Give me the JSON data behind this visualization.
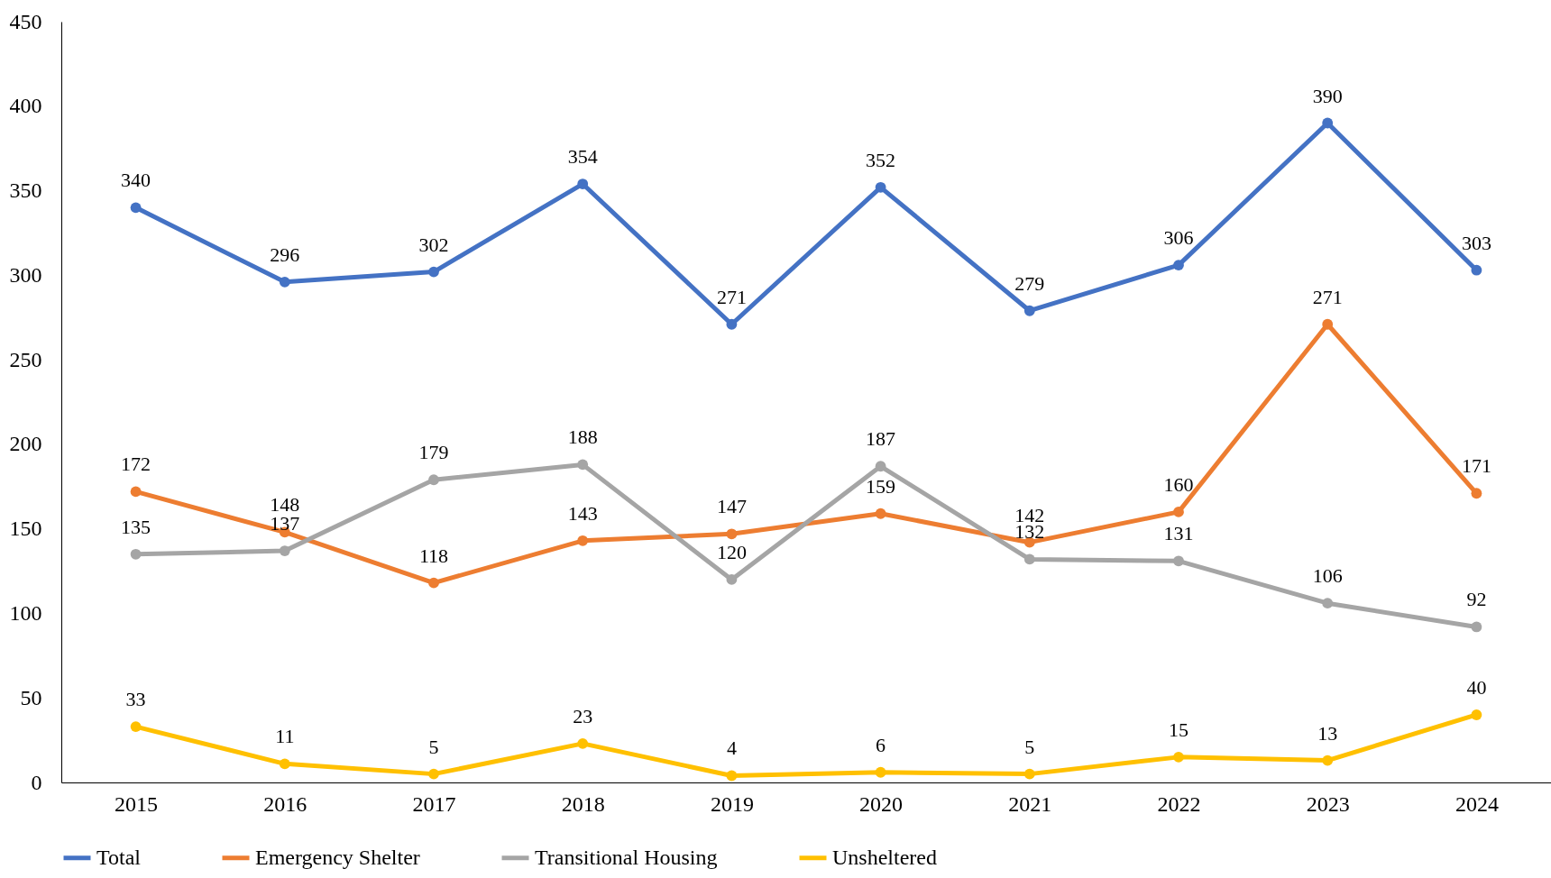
{
  "chart_data": {
    "type": "line",
    "categories": [
      "2015",
      "2016",
      "2017",
      "2018",
      "2019",
      "2020",
      "2021",
      "2022",
      "2023",
      "2024"
    ],
    "series": [
      {
        "name": "Total",
        "color": "#4472c4",
        "values": [
          340,
          296,
          302,
          354,
          271,
          352,
          279,
          306,
          390,
          303
        ]
      },
      {
        "name": "Emergency Shelter",
        "color": "#ed7d31",
        "values": [
          172,
          148,
          118,
          143,
          147,
          159,
          142,
          160,
          271,
          171
        ]
      },
      {
        "name": "Transitional Housing",
        "color": "#a5a5a5",
        "values": [
          135,
          137,
          179,
          188,
          120,
          187,
          132,
          131,
          106,
          92
        ]
      },
      {
        "name": "Unsheltered",
        "color": "#ffc000",
        "values": [
          33,
          11,
          5,
          23,
          4,
          6,
          5,
          15,
          13,
          40
        ]
      }
    ],
    "ylim": [
      0,
      450
    ],
    "yticks": [
      0,
      50,
      100,
      150,
      200,
      250,
      300,
      350,
      400,
      450
    ],
    "grid": false,
    "legend": "bottom",
    "marker": "circle",
    "line_style": "solid",
    "data_labels": true
  }
}
